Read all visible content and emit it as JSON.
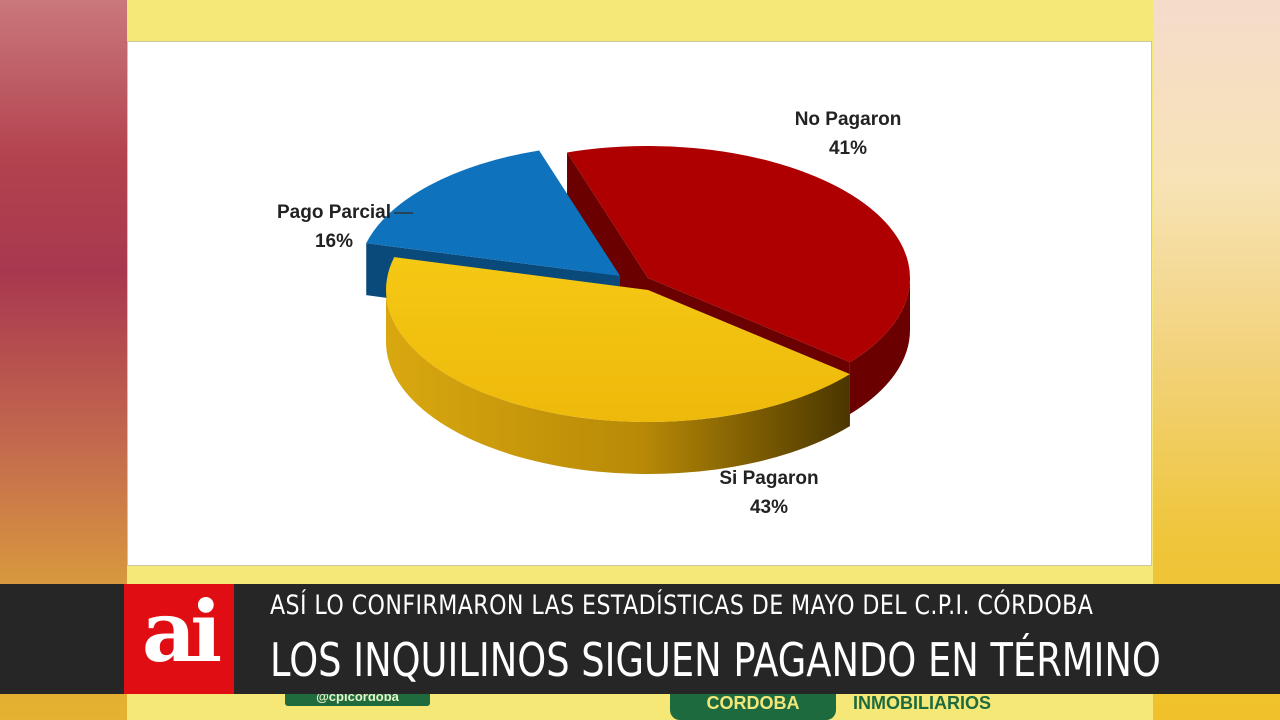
{
  "chart_data": {
    "type": "pie",
    "labels": [
      "No Pagaron",
      "Si Pagaron",
      "Pago Parcial"
    ],
    "values": [
      41,
      43,
      16
    ],
    "value_labels": [
      "41%",
      "43%",
      "16%"
    ],
    "colors": [
      "#ae0000",
      "#f2c20f",
      "#0f72bd"
    ],
    "side_colors": [
      "#6a0000",
      "#9c7400",
      "#0a4a7a"
    ]
  },
  "ticker": {
    "logo": "ai",
    "subheadline": "ASÍ LO CONFIRMARON LAS ESTADÍSTICAS DE MAYO DEL C.P.I. CÓRDOBA",
    "headline": "LOS INQUILINOS SIGUEN PAGANDO EN TÉRMINO"
  },
  "footer": {
    "handle": "@cpicordoba",
    "cordoba": "CORDOBA",
    "inmobiliarios": "INMOBILIARIOS"
  }
}
